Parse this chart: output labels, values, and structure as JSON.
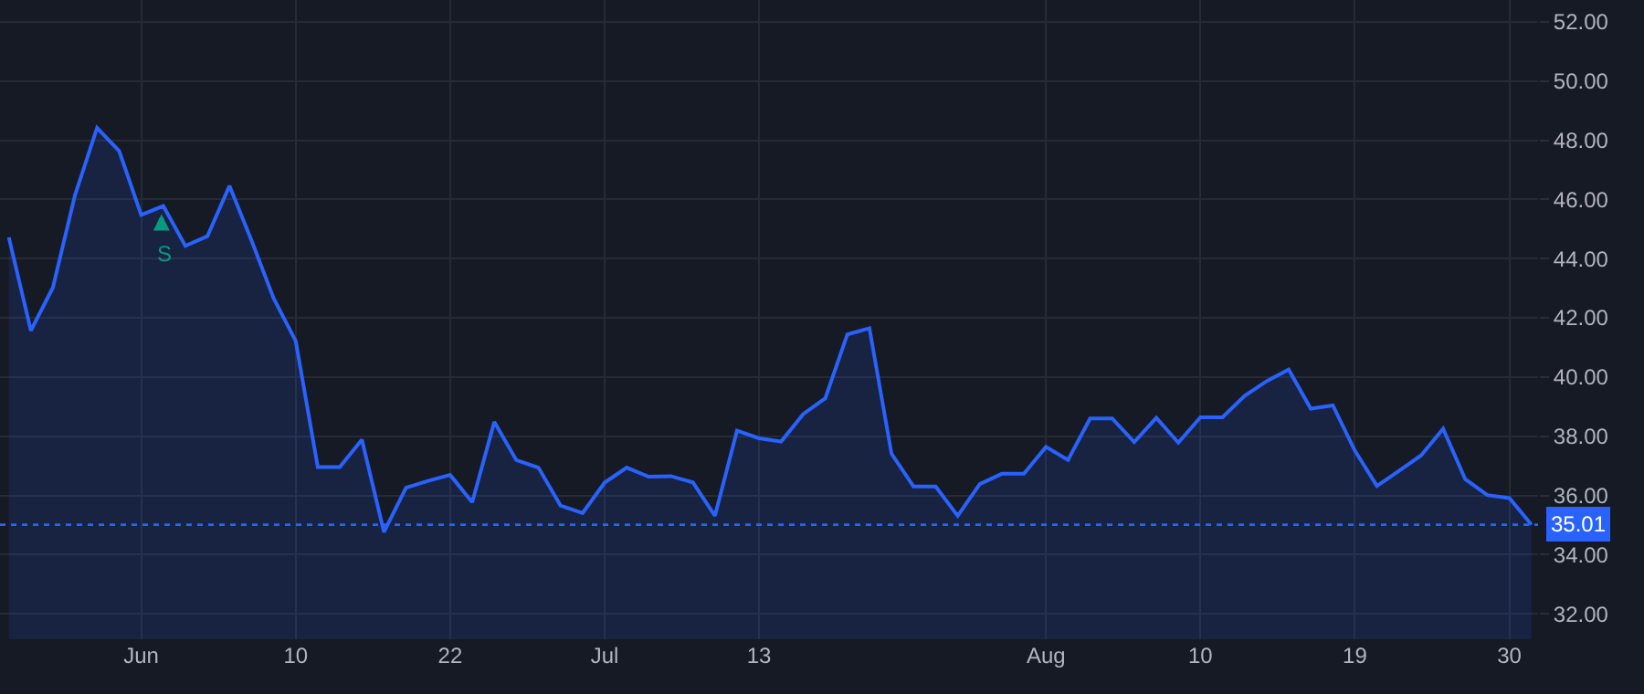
{
  "chart_data": {
    "type": "area",
    "categories": [
      null,
      null,
      null,
      null,
      null,
      null,
      "Jun",
      null,
      null,
      null,
      null,
      null,
      null,
      "10",
      null,
      null,
      null,
      null,
      null,
      null,
      "22",
      null,
      null,
      null,
      null,
      null,
      null,
      "Jul",
      null,
      null,
      null,
      null,
      null,
      null,
      "13",
      null,
      null,
      null,
      null,
      null,
      null,
      null,
      null,
      null,
      null,
      null,
      null,
      "Aug",
      null,
      null,
      null,
      null,
      null,
      null,
      "10",
      null,
      null,
      null,
      null,
      null,
      null,
      "19",
      null,
      null,
      null,
      null,
      null,
      null,
      "30",
      null
    ],
    "series": [
      {
        "color": "#2962ff",
        "values": [
          44.72,
          41.57,
          43.03,
          46.15,
          48.42,
          47.64,
          45.48,
          45.78,
          44.43,
          44.76,
          46.46,
          44.61,
          42.66,
          41.22,
          36.96,
          36.96,
          37.88,
          34.76,
          36.26,
          36.49,
          36.69,
          35.77,
          38.48,
          37.19,
          36.94,
          35.66,
          35.4,
          36.43,
          36.94,
          36.63,
          36.65,
          36.44,
          35.31,
          38.19,
          37.93,
          37.82,
          38.75,
          39.28,
          41.44,
          41.65,
          37.41,
          36.3,
          36.3,
          35.31,
          36.38,
          36.73,
          36.73,
          37.64,
          37.2,
          38.6,
          38.6,
          37.8,
          38.62,
          37.78,
          38.64,
          38.64,
          39.36,
          39.86,
          40.25,
          38.93,
          39.04,
          37.51,
          36.32,
          36.83,
          37.35,
          38.25,
          36.55,
          36.01,
          35.91,
          35.01
        ]
      }
    ],
    "ylim": [
      31.14,
      52.74
    ],
    "yticks": [
      {
        "value": 32,
        "label": "32.00"
      },
      {
        "value": 34,
        "label": "34.00"
      },
      {
        "value": 36,
        "label": "36.00"
      },
      {
        "value": 38,
        "label": "38.00"
      },
      {
        "value": 40,
        "label": "40.00"
      },
      {
        "value": 42,
        "label": "42.00"
      },
      {
        "value": 44,
        "label": "44.00"
      },
      {
        "value": 46,
        "label": "46.00"
      },
      {
        "value": 48,
        "label": "48.00"
      },
      {
        "value": 50,
        "label": "50.00"
      },
      {
        "value": 52,
        "label": "52.00"
      }
    ],
    "ref_lines": [
      {
        "axis": "y",
        "value": 35.01,
        "label": "35.01",
        "color": "#2962ff",
        "line_style": "dotted"
      }
    ],
    "annotations": [
      "S"
    ],
    "grid": true,
    "marker": "none",
    "line_style": "solid"
  }
}
